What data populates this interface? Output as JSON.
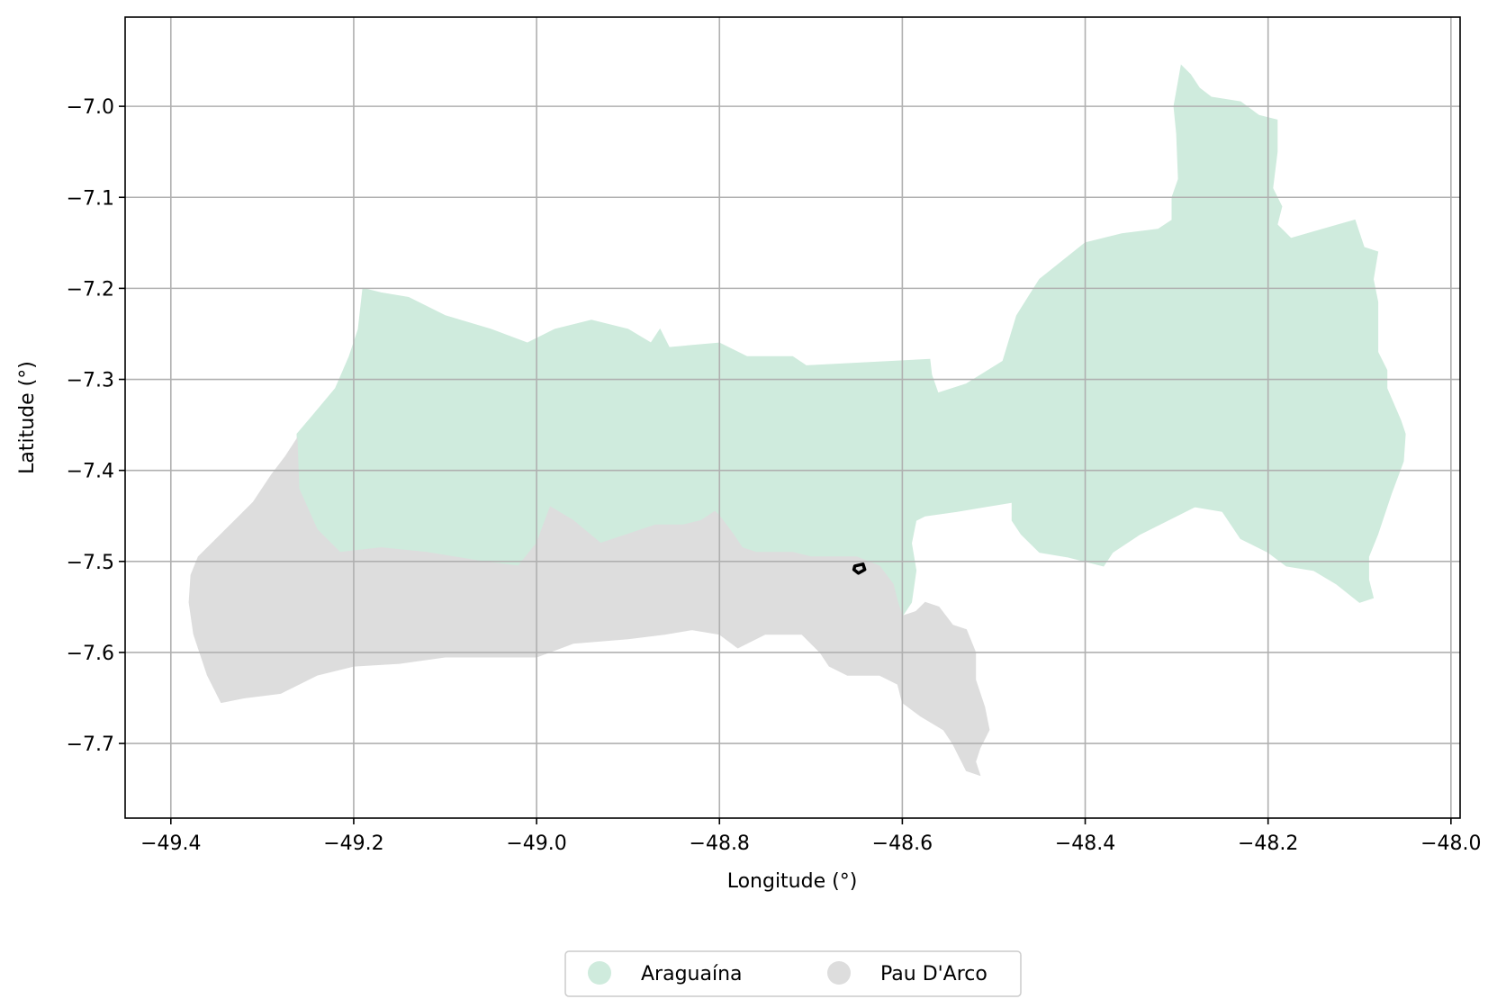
{
  "chart_data": {
    "type": "map",
    "xlabel": "Longitude (°)",
    "ylabel": "Latitude (°)",
    "xlim": [
      -49.45,
      -47.99
    ],
    "ylim": [
      -7.782,
      -6.902
    ],
    "grid": true,
    "legend_placement": "bottom-center",
    "xticks": [
      -49.4,
      -49.2,
      -49.0,
      -48.8,
      -48.6,
      -48.4,
      -48.2,
      -48.0
    ],
    "xtick_labels": [
      "−49.4",
      "−49.2",
      "−49.0",
      "−48.8",
      "−48.6",
      "−48.4",
      "−48.2",
      "−48.0"
    ],
    "yticks": [
      -7.0,
      -7.1,
      -7.2,
      -7.3,
      -7.4,
      -7.5,
      -7.6,
      -7.7
    ],
    "ytick_labels": [
      "−7.0",
      "−7.1",
      "−7.2",
      "−7.3",
      "−7.4",
      "−7.5",
      "−7.6",
      "−7.7"
    ],
    "regions": [
      {
        "name": "Araguaína",
        "color": "#cfebdd",
        "polygon": [
          [
            -49.262,
            -7.36
          ],
          [
            -49.245,
            -7.34
          ],
          [
            -49.22,
            -7.31
          ],
          [
            -49.205,
            -7.275
          ],
          [
            -49.195,
            -7.245
          ],
          [
            -49.19,
            -7.2
          ],
          [
            -49.17,
            -7.205
          ],
          [
            -49.14,
            -7.21
          ],
          [
            -49.1,
            -7.23
          ],
          [
            -49.05,
            -7.245
          ],
          [
            -49.01,
            -7.26
          ],
          [
            -48.98,
            -7.245
          ],
          [
            -48.94,
            -7.235
          ],
          [
            -48.9,
            -7.245
          ],
          [
            -48.875,
            -7.26
          ],
          [
            -48.865,
            -7.245
          ],
          [
            -48.855,
            -7.265
          ],
          [
            -48.8,
            -7.26
          ],
          [
            -48.77,
            -7.275
          ],
          [
            -48.72,
            -7.275
          ],
          [
            -48.705,
            -7.285
          ],
          [
            -48.57,
            -7.278
          ],
          [
            -48.568,
            -7.295
          ],
          [
            -48.561,
            -7.315
          ],
          [
            -48.53,
            -7.305
          ],
          [
            -48.49,
            -7.28
          ],
          [
            -48.475,
            -7.23
          ],
          [
            -48.45,
            -7.19
          ],
          [
            -48.4,
            -7.15
          ],
          [
            -48.36,
            -7.14
          ],
          [
            -48.32,
            -7.135
          ],
          [
            -48.305,
            -7.125
          ],
          [
            -48.305,
            -7.1
          ],
          [
            -48.298,
            -7.08
          ],
          [
            -48.3,
            -7.03
          ],
          [
            -48.303,
            -7.0
          ],
          [
            -48.295,
            -6.955
          ],
          [
            -48.285,
            -6.965
          ],
          [
            -48.275,
            -6.98
          ],
          [
            -48.262,
            -6.99
          ],
          [
            -48.23,
            -6.995
          ],
          [
            -48.21,
            -7.01
          ],
          [
            -48.19,
            -7.015
          ],
          [
            -48.19,
            -7.05
          ],
          [
            -48.195,
            -7.09
          ],
          [
            -48.185,
            -7.11
          ],
          [
            -48.19,
            -7.13
          ],
          [
            -48.175,
            -7.145
          ],
          [
            -48.14,
            -7.135
          ],
          [
            -48.105,
            -7.125
          ],
          [
            -48.095,
            -7.155
          ],
          [
            -48.08,
            -7.16
          ],
          [
            -48.085,
            -7.19
          ],
          [
            -48.08,
            -7.215
          ],
          [
            -48.08,
            -7.27
          ],
          [
            -48.07,
            -7.29
          ],
          [
            -48.07,
            -7.31
          ],
          [
            -48.055,
            -7.345
          ],
          [
            -48.05,
            -7.36
          ],
          [
            -48.052,
            -7.39
          ],
          [
            -48.065,
            -7.425
          ],
          [
            -48.08,
            -7.47
          ],
          [
            -48.09,
            -7.495
          ],
          [
            -48.09,
            -7.52
          ],
          [
            -48.085,
            -7.54
          ],
          [
            -48.1,
            -7.545
          ],
          [
            -48.125,
            -7.525
          ],
          [
            -48.15,
            -7.51
          ],
          [
            -48.18,
            -7.505
          ],
          [
            -48.2,
            -7.49
          ],
          [
            -48.23,
            -7.475
          ],
          [
            -48.25,
            -7.445
          ],
          [
            -48.28,
            -7.44
          ],
          [
            -48.31,
            -7.455
          ],
          [
            -48.34,
            -7.47
          ],
          [
            -48.37,
            -7.49
          ],
          [
            -48.38,
            -7.505
          ],
          [
            -48.42,
            -7.495
          ],
          [
            -48.45,
            -7.49
          ],
          [
            -48.47,
            -7.47
          ],
          [
            -48.48,
            -7.455
          ],
          [
            -48.48,
            -7.435
          ],
          [
            -48.51,
            -7.44
          ],
          [
            -48.54,
            -7.445
          ],
          [
            -48.575,
            -7.45
          ],
          [
            -48.585,
            -7.455
          ],
          [
            -48.59,
            -7.48
          ],
          [
            -48.585,
            -7.51
          ],
          [
            -48.59,
            -7.545
          ],
          [
            -48.6,
            -7.56
          ],
          [
            -48.605,
            -7.545
          ],
          [
            -48.61,
            -7.525
          ],
          [
            -48.625,
            -7.505
          ],
          [
            -48.65,
            -7.495
          ],
          [
            -48.7,
            -7.495
          ],
          [
            -48.72,
            -7.49
          ],
          [
            -48.76,
            -7.49
          ],
          [
            -48.775,
            -7.485
          ],
          [
            -48.785,
            -7.47
          ],
          [
            -48.8,
            -7.45
          ],
          [
            -48.805,
            -7.445
          ],
          [
            -48.82,
            -7.455
          ],
          [
            -48.84,
            -7.46
          ],
          [
            -48.87,
            -7.46
          ],
          [
            -48.9,
            -7.47
          ],
          [
            -48.93,
            -7.48
          ],
          [
            -48.96,
            -7.455
          ],
          [
            -48.985,
            -7.44
          ],
          [
            -49.0,
            -7.48
          ],
          [
            -49.02,
            -7.505
          ],
          [
            -49.06,
            -7.5
          ],
          [
            -49.12,
            -7.49
          ],
          [
            -49.17,
            -7.485
          ],
          [
            -49.215,
            -7.49
          ],
          [
            -49.24,
            -7.465
          ],
          [
            -49.26,
            -7.42
          ],
          [
            -49.262,
            -7.36
          ]
        ]
      },
      {
        "name": "Pau D'Arco",
        "color": "#dddddd",
        "polygon": [
          [
            -49.262,
            -7.365
          ],
          [
            -49.26,
            -7.42
          ],
          [
            -49.24,
            -7.465
          ],
          [
            -49.215,
            -7.49
          ],
          [
            -49.17,
            -7.485
          ],
          [
            -49.12,
            -7.49
          ],
          [
            -49.06,
            -7.5
          ],
          [
            -49.02,
            -7.505
          ],
          [
            -49.0,
            -7.48
          ],
          [
            -48.985,
            -7.44
          ],
          [
            -48.96,
            -7.455
          ],
          [
            -48.93,
            -7.48
          ],
          [
            -48.9,
            -7.47
          ],
          [
            -48.87,
            -7.46
          ],
          [
            -48.84,
            -7.46
          ],
          [
            -48.82,
            -7.455
          ],
          [
            -48.805,
            -7.445
          ],
          [
            -48.8,
            -7.45
          ],
          [
            -48.785,
            -7.47
          ],
          [
            -48.775,
            -7.485
          ],
          [
            -48.76,
            -7.49
          ],
          [
            -48.72,
            -7.49
          ],
          [
            -48.7,
            -7.495
          ],
          [
            -48.65,
            -7.495
          ],
          [
            -48.625,
            -7.505
          ],
          [
            -48.61,
            -7.525
          ],
          [
            -48.605,
            -7.545
          ],
          [
            -48.6,
            -7.56
          ],
          [
            -48.585,
            -7.555
          ],
          [
            -48.575,
            -7.545
          ],
          [
            -48.56,
            -7.55
          ],
          [
            -48.545,
            -7.57
          ],
          [
            -48.53,
            -7.575
          ],
          [
            -48.52,
            -7.6
          ],
          [
            -48.52,
            -7.63
          ],
          [
            -48.51,
            -7.66
          ],
          [
            -48.505,
            -7.685
          ],
          [
            -48.515,
            -7.705
          ],
          [
            -48.52,
            -7.72
          ],
          [
            -48.515,
            -7.735
          ],
          [
            -48.53,
            -7.73
          ],
          [
            -48.545,
            -7.7
          ],
          [
            -48.555,
            -7.685
          ],
          [
            -48.58,
            -7.67
          ],
          [
            -48.6,
            -7.655
          ],
          [
            -48.605,
            -7.635
          ],
          [
            -48.625,
            -7.625
          ],
          [
            -48.66,
            -7.625
          ],
          [
            -48.68,
            -7.615
          ],
          [
            -48.69,
            -7.6
          ],
          [
            -48.71,
            -7.58
          ],
          [
            -48.75,
            -7.58
          ],
          [
            -48.78,
            -7.595
          ],
          [
            -48.8,
            -7.58
          ],
          [
            -48.83,
            -7.575
          ],
          [
            -48.86,
            -7.58
          ],
          [
            -48.9,
            -7.585
          ],
          [
            -48.96,
            -7.59
          ],
          [
            -49.0,
            -7.605
          ],
          [
            -49.05,
            -7.605
          ],
          [
            -49.1,
            -7.605
          ],
          [
            -49.15,
            -7.612
          ],
          [
            -49.2,
            -7.615
          ],
          [
            -49.24,
            -7.625
          ],
          [
            -49.28,
            -7.645
          ],
          [
            -49.32,
            -7.65
          ],
          [
            -49.345,
            -7.655
          ],
          [
            -49.36,
            -7.625
          ],
          [
            -49.375,
            -7.58
          ],
          [
            -49.38,
            -7.545
          ],
          [
            -49.378,
            -7.515
          ],
          [
            -49.37,
            -7.495
          ],
          [
            -49.345,
            -7.47
          ],
          [
            -49.31,
            -7.435
          ],
          [
            -49.29,
            -7.405
          ],
          [
            -49.275,
            -7.385
          ],
          [
            -49.262,
            -7.365
          ]
        ]
      }
    ],
    "marker": {
      "polygon": [
        [
          -48.652,
          -7.505
        ],
        [
          -48.643,
          -7.503
        ],
        [
          -48.641,
          -7.509
        ],
        [
          -48.648,
          -7.513
        ],
        [
          -48.653,
          -7.509
        ]
      ],
      "color": "#000000"
    },
    "legend": [
      {
        "label": "Araguaína",
        "color": "#cfebdd"
      },
      {
        "label": "Pau D'Arco",
        "color": "#dddddd"
      }
    ]
  }
}
